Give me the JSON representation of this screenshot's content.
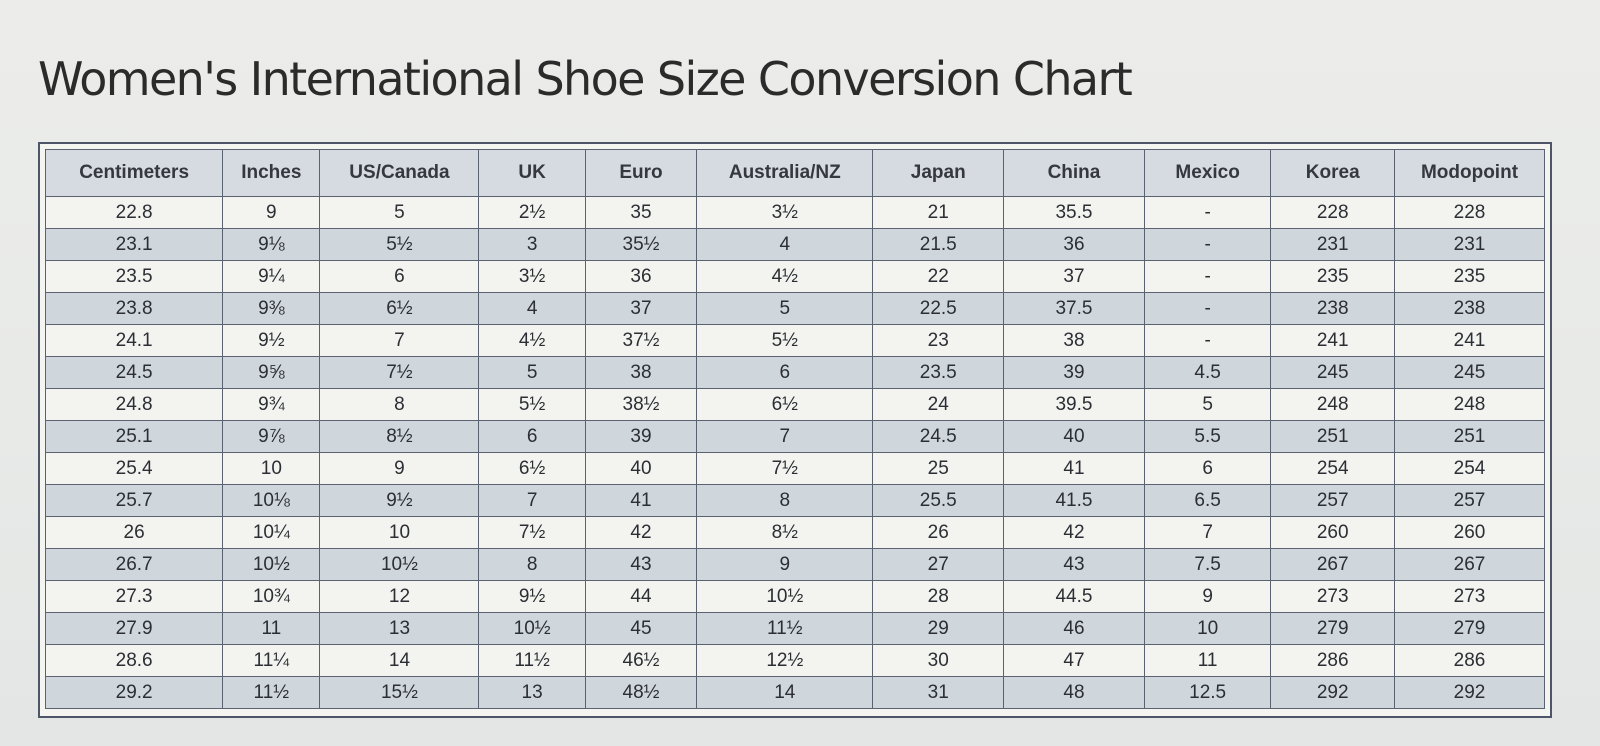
{
  "title": "Women's International Shoe Size Conversion Chart",
  "table": {
    "columns": [
      "Centimeters",
      "Inches",
      "US/Canada",
      "UK",
      "Euro",
      "Australia/NZ",
      "Japan",
      "China",
      "Mexico",
      "Korea",
      "Modopoint"
    ],
    "rows": [
      [
        "22.8",
        "9",
        "5",
        "2½",
        "35",
        "3½",
        "21",
        "35.5",
        "-",
        "228",
        "228"
      ],
      [
        "23.1",
        "9⅛",
        "5½",
        "3",
        "35½",
        "4",
        "21.5",
        "36",
        "-",
        "231",
        "231"
      ],
      [
        "23.5",
        "9¼",
        "6",
        "3½",
        "36",
        "4½",
        "22",
        "37",
        "-",
        "235",
        "235"
      ],
      [
        "23.8",
        "9⅜",
        "6½",
        "4",
        "37",
        "5",
        "22.5",
        "37.5",
        "-",
        "238",
        "238"
      ],
      [
        "24.1",
        "9½",
        "7",
        "4½",
        "37½",
        "5½",
        "23",
        "38",
        "-",
        "241",
        "241"
      ],
      [
        "24.5",
        "9⅝",
        "7½",
        "5",
        "38",
        "6",
        "23.5",
        "39",
        "4.5",
        "245",
        "245"
      ],
      [
        "24.8",
        "9¾",
        "8",
        "5½",
        "38½",
        "6½",
        "24",
        "39.5",
        "5",
        "248",
        "248"
      ],
      [
        "25.1",
        "9⅞",
        "8½",
        "6",
        "39",
        "7",
        "24.5",
        "40",
        "5.5",
        "251",
        "251"
      ],
      [
        "25.4",
        "10",
        "9",
        "6½",
        "40",
        "7½",
        "25",
        "41",
        "6",
        "254",
        "254"
      ],
      [
        "25.7",
        "10⅛",
        "9½",
        "7",
        "41",
        "8",
        "25.5",
        "41.5",
        "6.5",
        "257",
        "257"
      ],
      [
        "26",
        "10¼",
        "10",
        "7½",
        "42",
        "8½",
        "26",
        "42",
        "7",
        "260",
        "260"
      ],
      [
        "26.7",
        "10½",
        "10½",
        "8",
        "43",
        "9",
        "27",
        "43",
        "7.5",
        "267",
        "267"
      ],
      [
        "27.3",
        "10¾",
        "12",
        "9½",
        "44",
        "10½",
        "28",
        "44.5",
        "9",
        "273",
        "273"
      ],
      [
        "27.9",
        "11",
        "13",
        "10½",
        "45",
        "11½",
        "29",
        "46",
        "10",
        "279",
        "279"
      ],
      [
        "28.6",
        "11¼",
        "14",
        "11½",
        "46½",
        "12½",
        "30",
        "47",
        "11",
        "286",
        "286"
      ],
      [
        "29.2",
        "11½",
        "15½",
        "13",
        "48½",
        "14",
        "31",
        "48",
        "12.5",
        "292",
        "292"
      ]
    ]
  }
}
